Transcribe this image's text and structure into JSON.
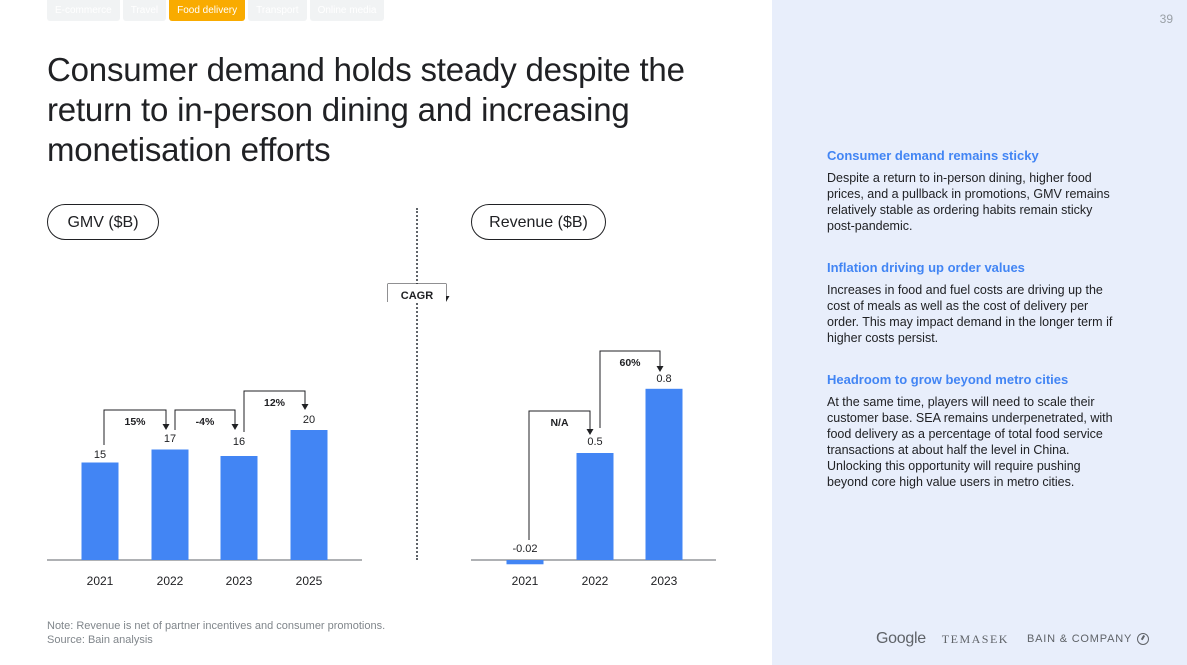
{
  "tabs": [
    {
      "label": "E-commerce",
      "active": false
    },
    {
      "label": "Travel",
      "active": false
    },
    {
      "label": "Food delivery",
      "active": true
    },
    {
      "label": "Transport",
      "active": false
    },
    {
      "label": "Online media",
      "active": false
    }
  ],
  "page_number": "39",
  "title": "Consumer demand holds steady despite the return to in-person dining and increasing monetisation efforts",
  "cagr_label": "CAGR",
  "chart_data": [
    {
      "type": "bar",
      "title": "GMV ($B)",
      "categories": [
        "2021",
        "2022",
        "2023",
        "2025"
      ],
      "values": [
        15,
        17,
        16,
        20
      ],
      "value_labels": [
        "15",
        "17",
        "16",
        "20"
      ],
      "growth": [
        {
          "from": "2021",
          "to": "2022",
          "label": "15%"
        },
        {
          "from": "2022",
          "to": "2023",
          "label": "-4%"
        },
        {
          "from": "2023",
          "to": "2025",
          "label": "12%"
        }
      ],
      "color": "#4285f4"
    },
    {
      "type": "bar",
      "title": "Revenue ($B)",
      "categories": [
        "2021",
        "2022",
        "2023"
      ],
      "values": [
        -0.02,
        0.5,
        0.8
      ],
      "value_labels": [
        "-0.02",
        "0.5",
        "0.8"
      ],
      "growth": [
        {
          "from": "2021",
          "to": "2022",
          "label": "N/A"
        },
        {
          "from": "2022",
          "to": "2023",
          "label": "60%"
        }
      ],
      "color": "#4285f4"
    }
  ],
  "notes": {
    "note": "Note: Revenue is net of partner incentives and consumer promotions.",
    "source": "Source: Bain analysis"
  },
  "insights": [
    {
      "heading": "Consumer demand remains sticky",
      "body": "Despite a return to in-person dining, higher food prices, and a pullback in promotions, GMV remains relatively stable as ordering habits remain sticky post-pandemic."
    },
    {
      "heading": "Inflation driving up order values",
      "body": "Increases in food and fuel costs are driving up the cost of meals as well as the cost of delivery per order. This may impact demand in the longer term if higher costs persist."
    },
    {
      "heading": "Headroom to grow beyond metro cities",
      "body": "At the same time, players will need to scale their customer base. SEA remains underpenetrated, with food delivery as a percentage of total food service transactions at about half the level in China. Unlocking this opportunity will require pushing beyond core high value users in metro cities."
    }
  ],
  "logos": {
    "google": "Google",
    "temasek": "TEMASEK",
    "bain": "BAIN & COMPANY"
  }
}
